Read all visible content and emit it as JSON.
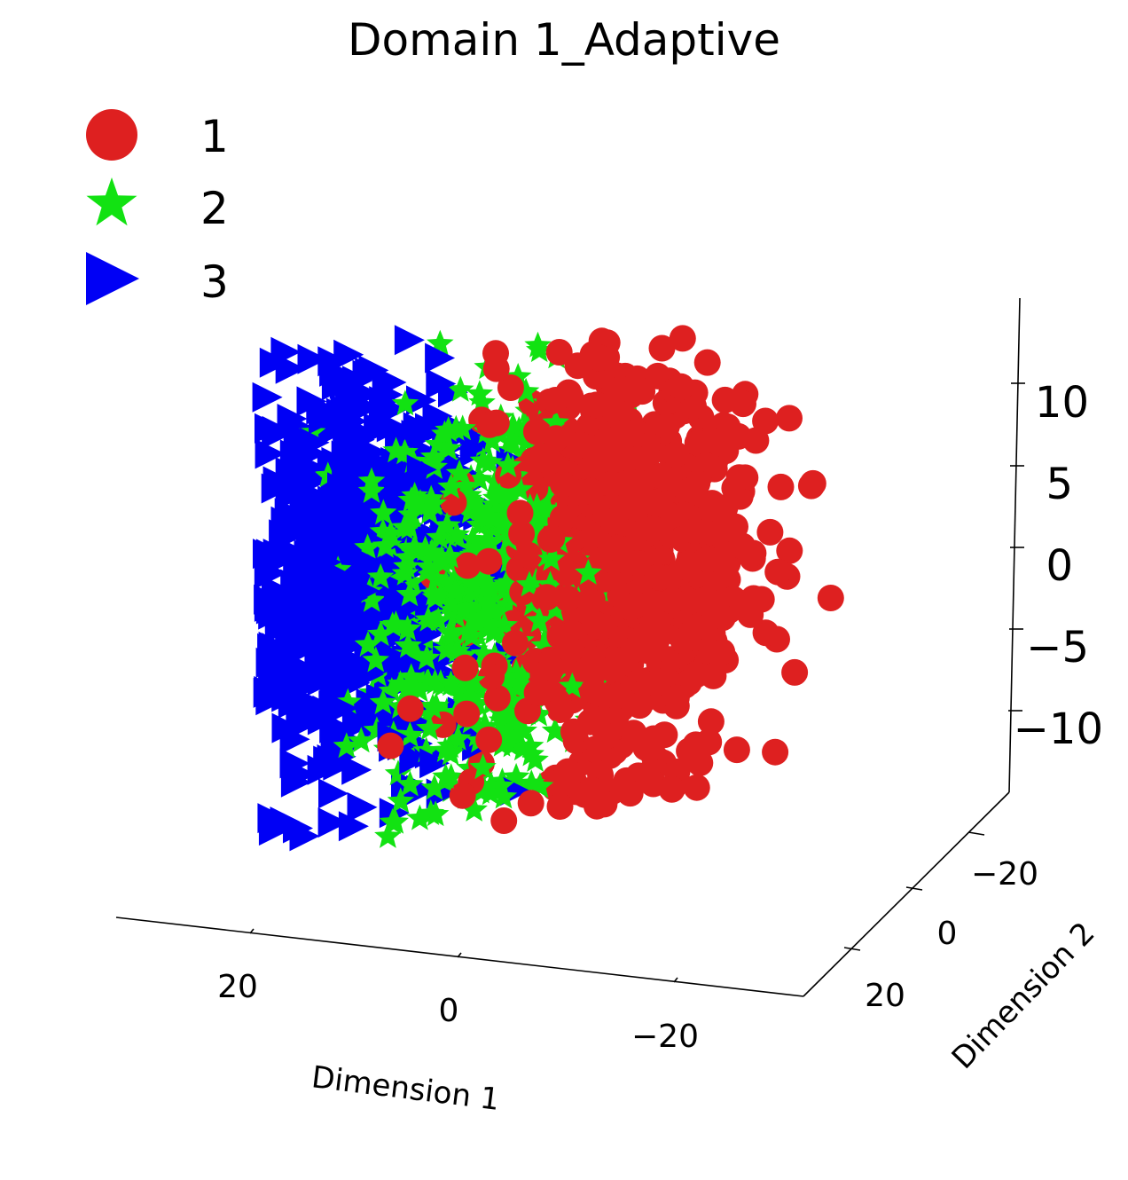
{
  "chart_data": {
    "type": "scatter",
    "projection": "3d",
    "title": "Domain 1_Adaptive",
    "xlabel": "Dimension 1",
    "ylabel": "Dimension 2",
    "zlabel": "",
    "x_ticks": [
      "20",
      "0",
      "−20"
    ],
    "y_ticks": [
      "−20",
      "0",
      "20"
    ],
    "z_ticks": [
      "10",
      "5",
      "0",
      "−5",
      "−10"
    ],
    "xlim": [
      -32,
      32
    ],
    "ylim": [
      -32,
      32
    ],
    "zlim": [
      -14,
      14
    ],
    "grid": false,
    "legend_position": "top-left",
    "colors": {
      "1": "#de2020",
      "2": "#12e212",
      "3": "#0000f5"
    },
    "series": [
      {
        "name": "1",
        "marker": "circle",
        "count": 700,
        "center": {
          "d1": -16,
          "d2": 0,
          "z": -1
        },
        "spread": {
          "d1": 6,
          "d2": 12,
          "z": 6.5
        }
      },
      {
        "name": "2",
        "marker": "star",
        "count": 650,
        "center": {
          "d1": -2,
          "d2": 0,
          "z": -2
        },
        "spread": {
          "d1": 5,
          "d2": 12,
          "z": 6
        }
      },
      {
        "name": "3",
        "marker": "triangle-right",
        "count": 700,
        "center": {
          "d1": 12,
          "d2": 0,
          "z": 0
        },
        "spread": {
          "d1": 6,
          "d2": 12,
          "z": 6.5
        }
      }
    ]
  }
}
